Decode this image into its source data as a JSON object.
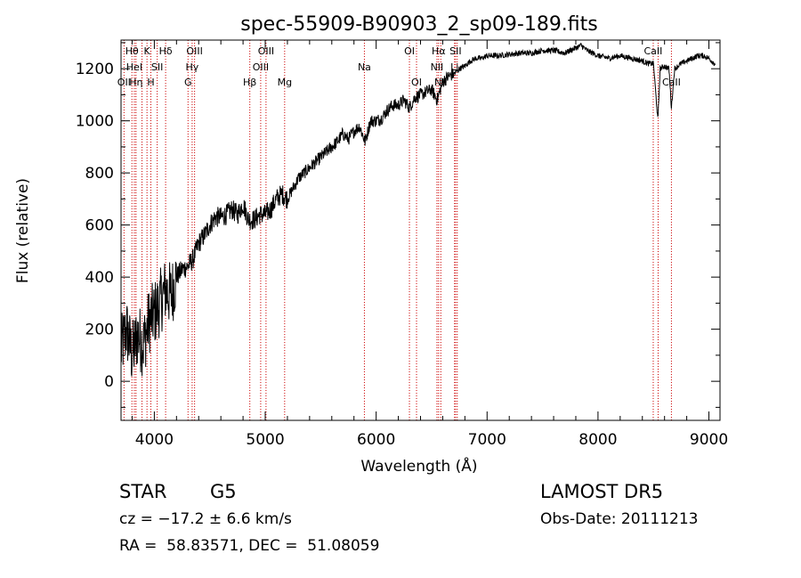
{
  "chart_data": {
    "type": "line",
    "title": "spec-55909-B90903_2_sp09-189.fits",
    "xlabel": "Wavelength (Å)",
    "ylabel": "Flux (relative)",
    "xlim": [
      3700,
      9100
    ],
    "ylim": [
      -150,
      1310
    ],
    "xticks": [
      4000,
      5000,
      6000,
      7000,
      8000,
      9000
    ],
    "yticks": [
      0,
      200,
      400,
      600,
      800,
      1000,
      1200
    ],
    "series": [
      {
        "x": [
          3700,
          3750,
          3800,
          3850,
          3900,
          3950,
          4000,
          4050,
          4100,
          4150,
          4200,
          4250,
          4300,
          4350,
          4400,
          4450,
          4500,
          4550,
          4600,
          4650,
          4700,
          4750,
          4800,
          4850,
          4900,
          4950,
          5000,
          5050,
          5100,
          5150,
          5200,
          5250,
          5300,
          5350,
          5400,
          5450,
          5500,
          5550,
          5600,
          5650,
          5700,
          5750,
          5800,
          5850,
          5900,
          5950,
          6000,
          6050,
          6100,
          6150,
          6200,
          6250,
          6300,
          6350,
          6400,
          6450,
          6500,
          6550,
          6600,
          6650,
          6700,
          6750,
          6800,
          6850,
          6900,
          6950,
          7000,
          7100,
          7200,
          7300,
          7400,
          7500,
          7600,
          7700,
          7800,
          7850,
          7900,
          8000,
          8100,
          8200,
          8300,
          8400,
          8450,
          8500,
          8540,
          8560,
          8600,
          8640,
          8662,
          8690,
          8750,
          8800,
          8850,
          8900,
          8950,
          9000,
          9050
        ],
        "y": [
          120,
          200,
          100,
          180,
          140,
          230,
          260,
          300,
          350,
          330,
          400,
          430,
          440,
          470,
          530,
          560,
          600,
          630,
          630,
          640,
          660,
          640,
          680,
          620,
          620,
          640,
          640,
          660,
          700,
          720,
          700,
          740,
          780,
          800,
          820,
          840,
          860,
          880,
          900,
          920,
          950,
          930,
          960,
          980,
          920,
          1000,
          1000,
          1010,
          1040,
          1060,
          1060,
          1080,
          1050,
          1090,
          1100,
          1110,
          1120,
          1080,
          1150,
          1170,
          1180,
          1200,
          1210,
          1230,
          1240,
          1240,
          1250,
          1250,
          1255,
          1260,
          1260,
          1270,
          1270,
          1260,
          1280,
          1290,
          1270,
          1250,
          1240,
          1250,
          1240,
          1230,
          1220,
          1220,
          1000,
          1200,
          1210,
          1200,
          1050,
          1200,
          1220,
          1230,
          1240,
          1250,
          1250,
          1240,
          1220
        ]
      }
    ],
    "lines": [
      {
        "x": 3727,
        "label": "OII",
        "row": 2
      },
      {
        "x": 3798,
        "label": "Hθ",
        "row": 0
      },
      {
        "x": 3820,
        "label": "HeI",
        "row": 1
      },
      {
        "x": 3835,
        "label": "Hη",
        "row": 2
      },
      {
        "x": 3889,
        "label": "",
        "row": 0
      },
      {
        "x": 3934,
        "label": "K",
        "row": 0
      },
      {
        "x": 3969,
        "label": "H",
        "row": 2
      },
      {
        "x": 4026,
        "label": "SII",
        "row": 1
      },
      {
        "x": 4102,
        "label": "Hδ",
        "row": 0
      },
      {
        "x": 4304,
        "label": "G",
        "row": 2
      },
      {
        "x": 4341,
        "label": "Hγ",
        "row": 1
      },
      {
        "x": 4363,
        "label": "OIII",
        "row": 0
      },
      {
        "x": 4861,
        "label": "Hβ",
        "row": 2
      },
      {
        "x": 4959,
        "label": "OIII",
        "row": 1
      },
      {
        "x": 5007,
        "label": "OIII",
        "row": 0
      },
      {
        "x": 5175,
        "label": "Mg",
        "row": 2
      },
      {
        "x": 5894,
        "label": "Na",
        "row": 1
      },
      {
        "x": 6300,
        "label": "OI",
        "row": 0
      },
      {
        "x": 6364,
        "label": "OI",
        "row": 2
      },
      {
        "x": 6548,
        "label": "NII",
        "row": 1
      },
      {
        "x": 6563,
        "label": "Hα",
        "row": 0
      },
      {
        "x": 6583,
        "label": "NII",
        "row": 2
      },
      {
        "x": 6707,
        "label": "Li",
        "row": 1
      },
      {
        "x": 6716,
        "label": "SII",
        "row": 0
      },
      {
        "x": 6731,
        "label": "",
        "row": 2
      },
      {
        "x": 8498,
        "label": "CaII",
        "row": 0
      },
      {
        "x": 8542,
        "label": "",
        "row": 0
      },
      {
        "x": 8662,
        "label": "CaII",
        "row": 2
      }
    ]
  },
  "info": {
    "class": "STAR",
    "subclass": "G5",
    "survey": "LAMOST DR5",
    "cz": "cz = −17.2 ± 6.6 km/s",
    "obs_date": "Obs-Date: 20111213",
    "coords": "RA =  58.83571, DEC =  51.08059"
  }
}
